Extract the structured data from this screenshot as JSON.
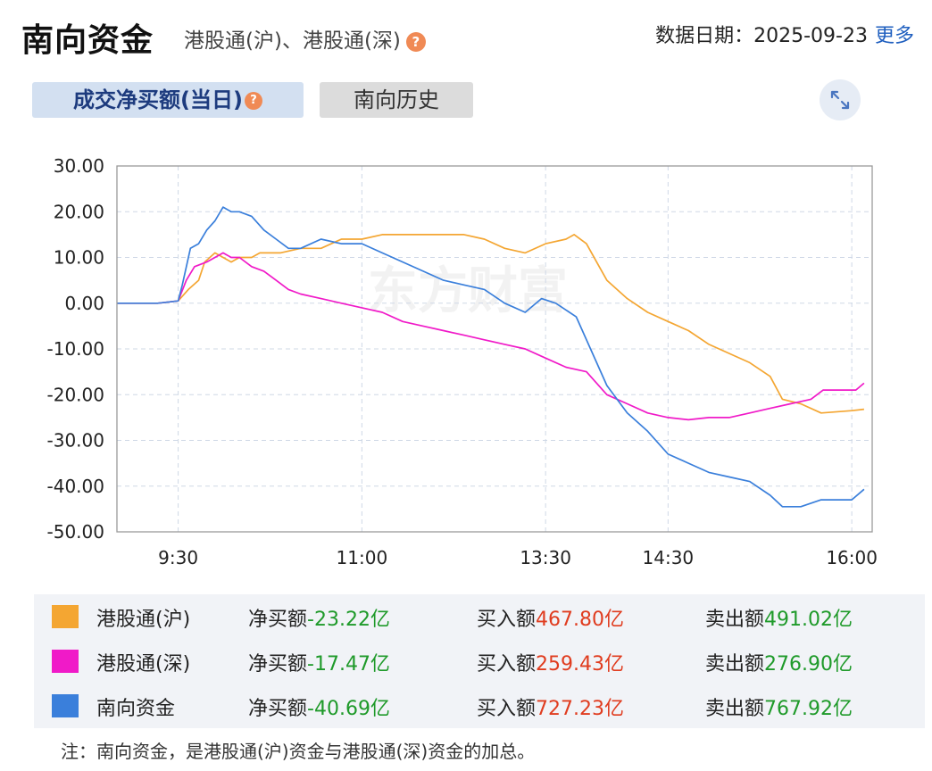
{
  "header": {
    "title": "南向资金",
    "subtitle": "港股通(沪)、港股通(深)",
    "help_glyph": "?",
    "date_label": "数据日期：2025-09-23",
    "more_label": "更多"
  },
  "tabs": [
    {
      "label": "成交净买额(当日)",
      "active": true
    },
    {
      "label": "南向历史",
      "active": false
    }
  ],
  "expand_icon": "expand-icon",
  "colors": {
    "hu": "#f4a632",
    "shen": "#f01ac8",
    "total": "#3a7fdb"
  },
  "chart_data": {
    "type": "line",
    "y_ticks": [
      "30.00",
      "20.00",
      "10.00",
      "0.00",
      "-10.00",
      "-20.00",
      "-30.00",
      "-40.00",
      "-50.00"
    ],
    "ylim": [
      -50,
      30
    ],
    "x_ticks": [
      {
        "label": "9:30",
        "t": 570
      },
      {
        "label": "11:00",
        "t": 660
      },
      {
        "label": "13:30",
        "t": 750
      },
      {
        "label": "14:30",
        "t": 810
      },
      {
        "label": "16:00",
        "t": 900
      }
    ],
    "x_range": [
      540,
      910
    ],
    "series": [
      {
        "name": "港股通(沪)",
        "color": "#f4a632",
        "points": [
          [
            540,
            0
          ],
          [
            560,
            0
          ],
          [
            570,
            0.5
          ],
          [
            575,
            3
          ],
          [
            580,
            5
          ],
          [
            583,
            9
          ],
          [
            588,
            11
          ],
          [
            592,
            10
          ],
          [
            596,
            9
          ],
          [
            600,
            10
          ],
          [
            606,
            10
          ],
          [
            610,
            11
          ],
          [
            620,
            11
          ],
          [
            630,
            12
          ],
          [
            640,
            12
          ],
          [
            650,
            14
          ],
          [
            660,
            14
          ],
          [
            670,
            15
          ],
          [
            680,
            15
          ],
          [
            690,
            15
          ],
          [
            700,
            15
          ],
          [
            710,
            15
          ],
          [
            720,
            14
          ],
          [
            730,
            12
          ],
          [
            740,
            11
          ],
          [
            750,
            13
          ],
          [
            760,
            14
          ],
          [
            764,
            15
          ],
          [
            770,
            13
          ],
          [
            775,
            9
          ],
          [
            780,
            5
          ],
          [
            790,
            1
          ],
          [
            800,
            -2
          ],
          [
            810,
            -4
          ],
          [
            820,
            -6
          ],
          [
            830,
            -9
          ],
          [
            840,
            -11
          ],
          [
            850,
            -13
          ],
          [
            860,
            -16
          ],
          [
            866,
            -21
          ],
          [
            875,
            -22
          ],
          [
            885,
            -24
          ],
          [
            900,
            -23.5
          ],
          [
            906,
            -23.2
          ]
        ]
      },
      {
        "name": "港股通(深)",
        "color": "#f01ac8",
        "points": [
          [
            540,
            0
          ],
          [
            560,
            0
          ],
          [
            570,
            0.5
          ],
          [
            574,
            5
          ],
          [
            578,
            8
          ],
          [
            584,
            9
          ],
          [
            588,
            10
          ],
          [
            592,
            11
          ],
          [
            596,
            10
          ],
          [
            600,
            10
          ],
          [
            606,
            8
          ],
          [
            612,
            7
          ],
          [
            618,
            5
          ],
          [
            624,
            3
          ],
          [
            630,
            2
          ],
          [
            640,
            1
          ],
          [
            650,
            0
          ],
          [
            660,
            -1
          ],
          [
            670,
            -2
          ],
          [
            680,
            -4
          ],
          [
            690,
            -5
          ],
          [
            700,
            -6
          ],
          [
            710,
            -7
          ],
          [
            720,
            -8
          ],
          [
            730,
            -9
          ],
          [
            740,
            -10
          ],
          [
            750,
            -12
          ],
          [
            760,
            -14
          ],
          [
            770,
            -15
          ],
          [
            780,
            -20
          ],
          [
            790,
            -22
          ],
          [
            800,
            -24
          ],
          [
            810,
            -25
          ],
          [
            820,
            -25.5
          ],
          [
            830,
            -25
          ],
          [
            840,
            -25
          ],
          [
            850,
            -24
          ],
          [
            860,
            -23
          ],
          [
            870,
            -22
          ],
          [
            880,
            -21
          ],
          [
            886,
            -19
          ],
          [
            895,
            -19
          ],
          [
            902,
            -19
          ],
          [
            906,
            -17.5
          ]
        ]
      },
      {
        "name": "南向资金",
        "color": "#3a7fdb",
        "points": [
          [
            540,
            0
          ],
          [
            560,
            0
          ],
          [
            570,
            0.5
          ],
          [
            572,
            4
          ],
          [
            576,
            12
          ],
          [
            580,
            13
          ],
          [
            584,
            16
          ],
          [
            588,
            18
          ],
          [
            592,
            21
          ],
          [
            596,
            20
          ],
          [
            600,
            20
          ],
          [
            606,
            19
          ],
          [
            612,
            16
          ],
          [
            618,
            14
          ],
          [
            624,
            12
          ],
          [
            630,
            12
          ],
          [
            640,
            14
          ],
          [
            650,
            13
          ],
          [
            660,
            13
          ],
          [
            670,
            11
          ],
          [
            680,
            9
          ],
          [
            690,
            7
          ],
          [
            700,
            5
          ],
          [
            710,
            4
          ],
          [
            720,
            3
          ],
          [
            730,
            0
          ],
          [
            740,
            -2
          ],
          [
            748,
            1
          ],
          [
            755,
            0
          ],
          [
            765,
            -3
          ],
          [
            772,
            -10
          ],
          [
            780,
            -18
          ],
          [
            790,
            -24
          ],
          [
            800,
            -28
          ],
          [
            810,
            -33
          ],
          [
            820,
            -35
          ],
          [
            830,
            -37
          ],
          [
            840,
            -38
          ],
          [
            850,
            -39
          ],
          [
            860,
            -42
          ],
          [
            866,
            -44.5
          ],
          [
            875,
            -44.5
          ],
          [
            885,
            -43
          ],
          [
            900,
            -43
          ],
          [
            906,
            -40.7
          ]
        ]
      }
    ]
  },
  "legend": [
    {
      "name": "港股通(沪)",
      "color": "#f4a632",
      "net_label": "净买额",
      "net_value": "-23.22亿",
      "buy_label": "买入额",
      "buy_value": "467.80亿",
      "sell_label": "卖出额",
      "sell_value": "491.02亿"
    },
    {
      "name": "港股通(深)",
      "color": "#f01ac8",
      "net_label": "净买额",
      "net_value": "-17.47亿",
      "buy_label": "买入额",
      "buy_value": "259.43亿",
      "sell_label": "卖出额",
      "sell_value": "276.90亿"
    },
    {
      "name": "南向资金",
      "color": "#3a7fdb",
      "net_label": "净买额",
      "net_value": "-40.69亿",
      "buy_label": "买入额",
      "buy_value": "727.23亿",
      "sell_label": "卖出额",
      "sell_value": "767.92亿"
    }
  ],
  "watermark": "东方财富",
  "note": "注：南向资金，是港股通(沪)资金与港股通(深)资金的加总。"
}
